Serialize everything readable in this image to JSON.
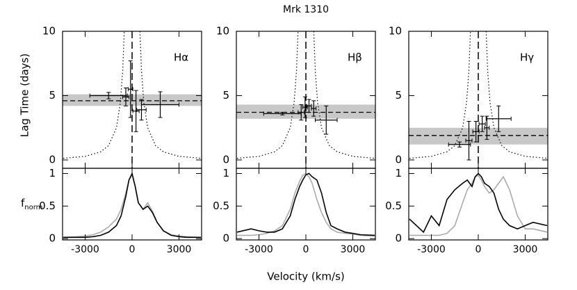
{
  "title": "Mrk 1310",
  "xlabel": "Velocity (km/s)",
  "ylabel_lag": "Lag Time (days)",
  "ylabel_flux": {
    "main": "f",
    "sub": "norm"
  },
  "chart_data": [
    {
      "type": "errorbar",
      "label": "Hα",
      "xlim": [
        -4444,
        4444
      ],
      "ylim": [
        -0.65,
        10
      ],
      "xticks": [
        -3000,
        0,
        3000
      ],
      "yticks": [
        0,
        5,
        10
      ],
      "band": [
        4.2,
        5.1
      ],
      "lag": 4.6,
      "vline": 0,
      "x": [
        -1500,
        -400,
        -100,
        250,
        600,
        1800
      ],
      "xerr": [
        1200,
        200,
        150,
        200,
        300,
        1200
      ],
      "values": [
        5.0,
        4.9,
        5.5,
        3.8,
        3.9,
        4.3
      ],
      "yerr": [
        0.25,
        0.7,
        2.2,
        1.6,
        0.8,
        1.0
      ],
      "envelope": {
        "x": [
          -4400,
          -3000,
          -2000,
          -1500,
          -1000,
          -750,
          -600,
          -500,
          null,
          500,
          600,
          750,
          1000,
          1500,
          2000,
          3000,
          4400
        ],
        "values": [
          0.13,
          0.28,
          0.63,
          1.11,
          2.5,
          4.44,
          6.94,
          10,
          null,
          10,
          6.94,
          4.44,
          2.5,
          1.11,
          0.63,
          0.28,
          0.13
        ]
      }
    },
    {
      "type": "errorbar",
      "label": "Hβ",
      "xlim": [
        -4444,
        4444
      ],
      "ylim": [
        -0.65,
        10
      ],
      "xticks": [
        -3000,
        0,
        3000
      ],
      "yticks": [
        0,
        5,
        10
      ],
      "band": [
        3.2,
        4.3
      ],
      "lag": 3.7,
      "vline": 0,
      "x": [
        -1500,
        -300,
        -50,
        200,
        500,
        1300
      ],
      "xerr": [
        1200,
        200,
        150,
        150,
        150,
        700
      ],
      "values": [
        3.6,
        3.7,
        4.1,
        4.2,
        4.0,
        3.1
      ],
      "yerr": [
        0.1,
        0.6,
        0.8,
        0.5,
        0.6,
        1.1
      ],
      "envelope": {
        "x": [
          -4400,
          -3000,
          -2000,
          -1500,
          -1000,
          -750,
          -600,
          -500,
          null,
          500,
          600,
          750,
          1000,
          1500,
          2000,
          3000,
          4400
        ],
        "values": [
          0.13,
          0.28,
          0.63,
          1.11,
          2.5,
          4.44,
          6.94,
          10,
          null,
          10,
          6.94,
          4.44,
          2.5,
          1.11,
          0.63,
          0.28,
          0.13
        ]
      }
    },
    {
      "type": "errorbar",
      "label": "Hγ",
      "xlim": [
        -4444,
        4444
      ],
      "ylim": [
        -0.65,
        10
      ],
      "xticks": [
        -3000,
        0,
        3000
      ],
      "yticks": [
        0,
        5,
        10
      ],
      "band": [
        1.2,
        2.5
      ],
      "lag": 1.9,
      "vline": 0,
      "x": [
        -1200,
        -600,
        -150,
        250,
        550,
        1300
      ],
      "xerr": [
        700,
        200,
        200,
        200,
        150,
        800
      ],
      "values": [
        1.2,
        1.5,
        2.2,
        2.8,
        2.5,
        3.2
      ],
      "yerr": [
        0.2,
        1.5,
        0.8,
        0.6,
        0.9,
        1.0
      ],
      "envelope": {
        "x": [
          -4400,
          -3000,
          -2000,
          -1500,
          -1000,
          -750,
          -600,
          -500,
          null,
          500,
          600,
          750,
          1000,
          1500,
          2000,
          3000,
          4400
        ],
        "values": [
          0.13,
          0.28,
          0.63,
          1.11,
          2.5,
          4.44,
          6.94,
          10,
          null,
          10,
          6.94,
          4.44,
          2.5,
          1.11,
          0.63,
          0.28,
          0.13
        ]
      }
    },
    {
      "type": "line",
      "xlim": [
        -4444,
        4444
      ],
      "ylim": [
        -0.02,
        1.08
      ],
      "xticks": [
        -3000,
        0,
        3000
      ],
      "yticks": [
        0,
        0.5,
        1
      ],
      "x": [
        -4400,
        -3500,
        -3000,
        -2500,
        -2000,
        -1500,
        -1000,
        -700,
        -400,
        -200,
        0,
        200,
        400,
        700,
        1000,
        1300,
        1600,
        2000,
        2500,
        3000,
        3500,
        4400
      ],
      "series": [
        {
          "color": "#aaaaaa",
          "values": [
            0.02,
            0.03,
            0.04,
            0.06,
            0.1,
            0.18,
            0.3,
            0.45,
            0.7,
            0.9,
            0.98,
            0.8,
            0.55,
            0.45,
            0.55,
            0.42,
            0.25,
            0.12,
            0.06,
            0.04,
            0.03,
            0.02
          ]
        },
        {
          "color": "#000000",
          "values": [
            0.02,
            0.02,
            0.02,
            0.03,
            0.05,
            0.1,
            0.2,
            0.35,
            0.65,
            0.9,
            1.0,
            0.8,
            0.55,
            0.45,
            0.5,
            0.4,
            0.25,
            0.12,
            0.05,
            0.03,
            0.02,
            0.02
          ]
        }
      ]
    },
    {
      "type": "line",
      "xlim": [
        -4444,
        4444
      ],
      "ylim": [
        -0.02,
        1.08
      ],
      "xticks": [
        -3000,
        0,
        3000
      ],
      "yticks": [
        0,
        0.5,
        1
      ],
      "x": [
        -4400,
        -3500,
        -3000,
        -2500,
        -2000,
        -1500,
        -1000,
        -700,
        -400,
        -200,
        0,
        200,
        400,
        700,
        1000,
        1300,
        1600,
        2000,
        2500,
        3000,
        3500,
        4400
      ],
      "series": [
        {
          "color": "#aaaaaa",
          "values": [
            0.05,
            0.05,
            0.06,
            0.08,
            0.12,
            0.2,
            0.45,
            0.7,
            0.88,
            0.97,
            1.0,
            0.95,
            0.85,
            0.6,
            0.4,
            0.25,
            0.15,
            0.1,
            0.08,
            0.07,
            0.05,
            0.04
          ]
        },
        {
          "color": "#000000",
          "values": [
            0.1,
            0.15,
            0.12,
            0.1,
            0.1,
            0.15,
            0.35,
            0.6,
            0.8,
            0.9,
            0.98,
            1.0,
            0.95,
            0.9,
            0.7,
            0.4,
            0.2,
            0.15,
            0.1,
            0.08,
            0.06,
            0.05
          ]
        }
      ]
    },
    {
      "type": "line",
      "xlim": [
        -4444,
        4444
      ],
      "ylim": [
        -0.02,
        1.08
      ],
      "xticks": [
        -3000,
        0,
        3000
      ],
      "yticks": [
        0,
        0.5,
        1
      ],
      "x": [
        -4400,
        -3500,
        -3000,
        -2500,
        -2000,
        -1500,
        -1000,
        -700,
        -400,
        -200,
        0,
        200,
        400,
        700,
        1000,
        1300,
        1600,
        2000,
        2500,
        3000,
        3500,
        4400
      ],
      "series": [
        {
          "color": "#aaaaaa",
          "values": [
            0.05,
            0.05,
            0.05,
            0.05,
            0.08,
            0.2,
            0.55,
            0.75,
            0.85,
            0.95,
            0.97,
            0.9,
            0.8,
            0.7,
            0.75,
            0.85,
            0.95,
            0.75,
            0.35,
            0.15,
            0.15,
            0.1
          ]
        },
        {
          "color": "#000000",
          "values": [
            0.3,
            0.1,
            0.35,
            0.2,
            0.6,
            0.75,
            0.85,
            0.9,
            0.8,
            0.95,
            1.0,
            0.95,
            0.85,
            0.8,
            0.7,
            0.45,
            0.3,
            0.2,
            0.15,
            0.2,
            0.25,
            0.2
          ]
        }
      ]
    }
  ]
}
